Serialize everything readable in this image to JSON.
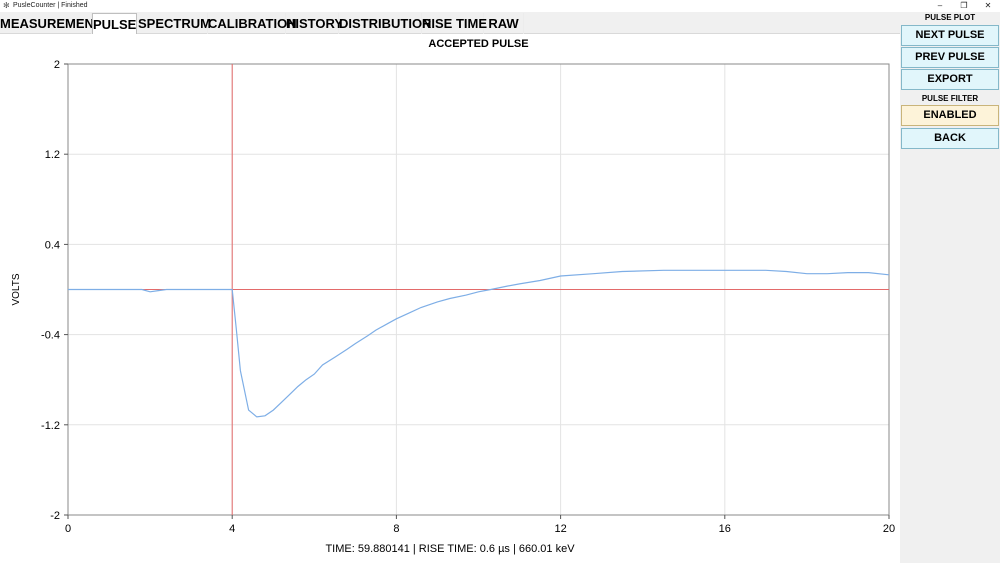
{
  "window": {
    "title": "PusleCounter | Finished",
    "controls": [
      "–",
      "❐",
      "✕"
    ]
  },
  "tabs": [
    {
      "label": "MEASUREMENT",
      "active": false
    },
    {
      "label": "PULSE",
      "active": true
    },
    {
      "label": "SPECTRUM",
      "active": false
    },
    {
      "label": "CALIBRATION",
      "active": false
    },
    {
      "label": "HISTORY",
      "active": false
    },
    {
      "label": "DISTRIBUTION",
      "active": false
    },
    {
      "label": "RISE TIME",
      "active": false
    },
    {
      "label": "RAW",
      "active": false
    }
  ],
  "panel": {
    "pulse_plot_heading": "PULSE PLOT",
    "next_pulse": "NEXT PULSE",
    "prev_pulse": "PREV PULSE",
    "export": "EXPORT",
    "pulse_filter_heading": "PULSE FILTER",
    "filter_state": "ENABLED",
    "back": "BACK"
  },
  "plot": {
    "status_line": "TIME: 59.880141 | RISE TIME: 0.6 µs | 660.01 keV"
  },
  "chart_data": {
    "type": "line",
    "title": "ACCEPTED PULSE",
    "xlabel": "",
    "ylabel": "VOLTS",
    "xlim": [
      0,
      20
    ],
    "ylim": [
      -2,
      2
    ],
    "xticks": [
      0,
      4,
      8,
      12,
      16,
      20
    ],
    "xtick_labels": [
      "0",
      "4",
      "8",
      "12",
      "16",
      "20"
    ],
    "yticks": [
      2,
      1.2,
      0.4,
      -0.4,
      -1.2,
      -2
    ],
    "ytick_labels": [
      "2",
      "1.2",
      "0.4",
      "-0.4",
      "-1.2",
      "-2"
    ],
    "grid": true,
    "colors": {
      "series": "#7eaee6",
      "marker": "#e36a6a",
      "grid": "#e3e3e3"
    },
    "markers": {
      "vline_x": 4,
      "hline_y": 0
    },
    "series": [
      {
        "x": [
          0,
          1.8,
          2.0,
          2.2,
          2.4,
          3.0,
          4.0,
          4.1,
          4.2,
          4.4,
          4.6,
          4.8,
          5.0,
          5.2,
          5.4,
          5.6,
          5.8,
          6.0,
          6.2,
          6.5,
          6.8,
          7.0,
          7.3,
          7.5,
          7.8,
          8.0,
          8.3,
          8.6,
          9.0,
          9.3,
          9.7,
          10.0,
          10.3,
          10.7,
          11.0,
          11.5,
          12.0,
          12.8,
          13.5,
          14.5,
          15.5,
          16.5,
          17.0,
          17.5,
          18.0,
          18.5,
          19.0,
          19.5,
          20.0
        ],
        "y": [
          0,
          0,
          -0.02,
          -0.01,
          0,
          0,
          0,
          -0.35,
          -0.72,
          -1.07,
          -1.13,
          -1.12,
          -1.07,
          -1.0,
          -0.93,
          -0.86,
          -0.8,
          -0.75,
          -0.67,
          -0.6,
          -0.53,
          -0.48,
          -0.41,
          -0.36,
          -0.3,
          -0.26,
          -0.21,
          -0.16,
          -0.11,
          -0.08,
          -0.05,
          -0.02,
          0.0,
          0.03,
          0.05,
          0.08,
          0.12,
          0.14,
          0.16,
          0.17,
          0.17,
          0.17,
          0.17,
          0.16,
          0.14,
          0.14,
          0.15,
          0.15,
          0.13
        ]
      }
    ]
  }
}
